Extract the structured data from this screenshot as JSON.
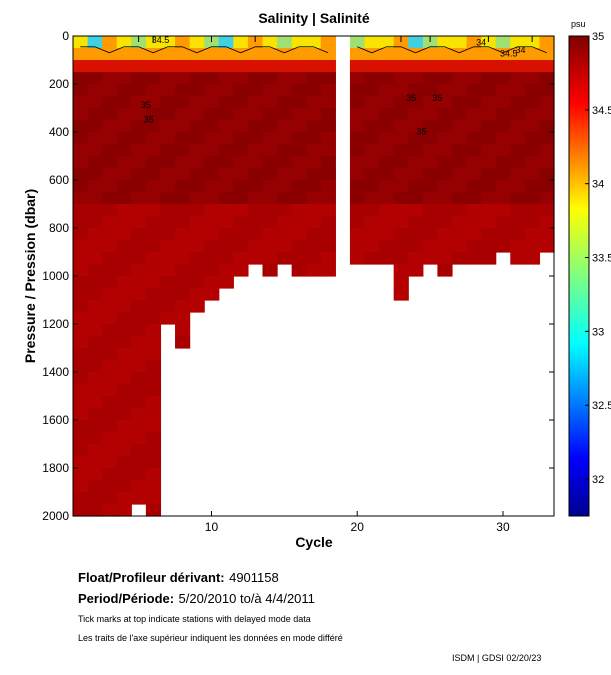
{
  "chart_data": {
    "type": "heatmap",
    "title": "Salinity | Salinité",
    "xlabel": "Cycle",
    "ylabel": "Pressure / Pression (dbar)",
    "xlim": [
      0.5,
      33.5
    ],
    "ylim": [
      0,
      2000
    ],
    "x_ticks": [
      10,
      20,
      30
    ],
    "y_ticks": [
      0,
      200,
      400,
      600,
      800,
      1000,
      1200,
      1400,
      1600,
      1800,
      2000
    ],
    "colorbar": {
      "unit": "psu",
      "range": [
        31.75,
        35
      ],
      "tick_values": [
        35,
        34.5,
        34,
        33.5,
        33,
        32.5,
        32
      ],
      "tick_labels": [
        "35",
        "34.5",
        "34",
        "33.5",
        "33",
        "32.5",
        "32"
      ]
    },
    "cycles": [
      1,
      2,
      3,
      4,
      5,
      6,
      7,
      8,
      9,
      10,
      11,
      12,
      13,
      14,
      15,
      16,
      17,
      18,
      19,
      20,
      21,
      22,
      23,
      24,
      25,
      26,
      27,
      28,
      29,
      30,
      31,
      32,
      33
    ],
    "max_depth_dbar": [
      2000,
      2000,
      2000,
      2000,
      1950,
      2000,
      1200,
      1300,
      1150,
      1100,
      1050,
      1000,
      950,
      1000,
      950,
      1000,
      1000,
      1000,
      1000,
      950,
      950,
      950,
      1100,
      1000,
      950,
      1000,
      950,
      950,
      950,
      900,
      950,
      950,
      900
    ],
    "missing_cycles": [
      19
    ],
    "contour_labels": [
      {
        "text": "34.5",
        "cycle": 6.5,
        "pressure": 30
      },
      {
        "text": "35",
        "cycle": 5.5,
        "pressure": 300
      },
      {
        "text": "35",
        "cycle": 5.7,
        "pressure": 360
      },
      {
        "text": "35",
        "cycle": 23.7,
        "pressure": 270
      },
      {
        "text": "35",
        "cycle": 25.5,
        "pressure": 270
      },
      {
        "text": "35",
        "cycle": 24.4,
        "pressure": 410
      },
      {
        "text": "34",
        "cycle": 28.5,
        "pressure": 40
      },
      {
        "text": "34",
        "cycle": 31.2,
        "pressure": 70
      },
      {
        "text": "34.5",
        "cycle": 30.4,
        "pressure": 85
      }
    ],
    "delayed_mode_ticks": [
      5,
      6,
      10,
      13,
      23,
      25,
      29,
      32
    ]
  },
  "info": {
    "float_label": "Float/Profileur dérivant:",
    "float_id": "4901158",
    "period_label": "Period/Période:",
    "period_value": "5/20/2010  to/à  4/4/2011",
    "note_en": "Tick marks at top indicate stations with delayed mode data",
    "note_fr": "Les traits de l'axe supérieur indiquent les données en mode différé",
    "credit": "ISDM | GDSI  02/20/23"
  },
  "colors": {
    "deep": "#8a0000",
    "mid": "#b30000",
    "upper": "#d81000",
    "surface_orange": "#ff9a00",
    "surface_yellow": "#f8e400",
    "surface_green": "#a0e070",
    "surface_cyan": "#40d0e0"
  }
}
